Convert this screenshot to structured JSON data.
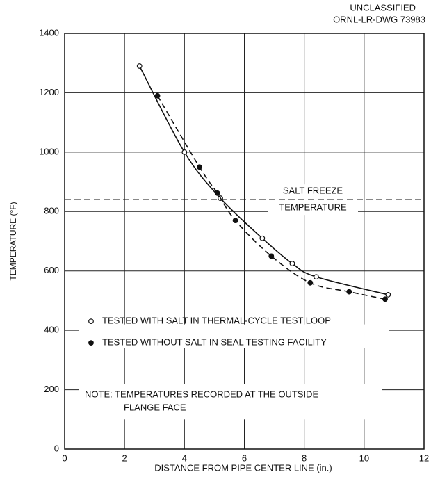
{
  "chart_data": {
    "type": "scatter",
    "header": [
      "UNCLASSIFIED",
      "ORNL-LR-DWG 73983"
    ],
    "xlabel": "DISTANCE FROM PIPE CENTER LINE (in.)",
    "ylabel": "TEMPERATURE (°F)",
    "xlim": [
      0,
      12
    ],
    "xticks": [
      0,
      2,
      4,
      6,
      8,
      10,
      12
    ],
    "ylim": [
      0,
      1400
    ],
    "yticks": [
      0,
      200,
      400,
      600,
      800,
      1000,
      1200,
      1400
    ],
    "grid": true,
    "series": [
      {
        "name": "TESTED WITH SALT IN THERMAL-CYCLE TEST LOOP",
        "marker": "open",
        "line": "solid",
        "color": "#111",
        "x": [
          2.5,
          4.0,
          5.2,
          6.6,
          7.6,
          8.4,
          10.8
        ],
        "values": [
          1290,
          1000,
          845,
          710,
          625,
          580,
          520
        ]
      },
      {
        "name": "TESTED WITHOUT SALT IN SEAL TESTING FACILITY",
        "marker": "filled",
        "line": "dashed",
        "color": "#111",
        "x": [
          3.1,
          4.5,
          5.1,
          5.7,
          6.9,
          8.2,
          9.5,
          10.7
        ],
        "values": [
          1190,
          950,
          862,
          770,
          650,
          560,
          530,
          505
        ]
      }
    ],
    "reference_line": {
      "value": 840,
      "label": [
        "SALT FREEZE",
        "TEMPERATURE"
      ]
    },
    "note": [
      "NOTE: TEMPERATURES RECORDED AT THE OUTSIDE",
      "FLANGE FACE"
    ]
  }
}
